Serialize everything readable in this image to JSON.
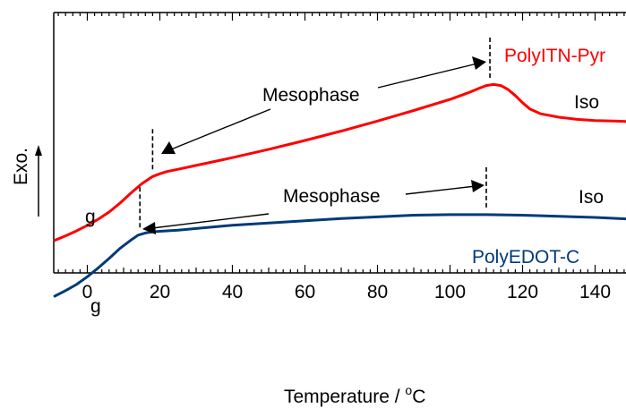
{
  "chart_data": {
    "type": "line",
    "title": "",
    "xlabel": "Temperature / ",
    "xlabel_superscript": "o",
    "xlabel_unit": "C",
    "ylabel": "Exo.",
    "xlim": [
      -9,
      150
    ],
    "x_ticks": [
      0,
      20,
      40,
      60,
      80,
      100,
      120,
      140
    ],
    "y_ticks": [],
    "grid": false,
    "series": [
      {
        "name": "PolyITN-Pyr",
        "color": "#ff0000",
        "x": [
          -9,
          -6,
          -3,
          0,
          3,
          6,
          9,
          12,
          15,
          18,
          20,
          22,
          25,
          30,
          40,
          50,
          60,
          70,
          80,
          90,
          100,
          105,
          108,
          110,
          112,
          114,
          116,
          118,
          120,
          122,
          125,
          130,
          135,
          140,
          145,
          150
        ],
        "y": [
          -0.3,
          -0.22,
          -0.13,
          -0.03,
          0.08,
          0.21,
          0.37,
          0.55,
          0.72,
          0.85,
          0.9,
          0.94,
          0.98,
          1.05,
          1.19,
          1.34,
          1.5,
          1.67,
          1.85,
          2.04,
          2.24,
          2.36,
          2.44,
          2.49,
          2.51,
          2.49,
          2.42,
          2.31,
          2.18,
          2.07,
          1.98,
          1.92,
          1.88,
          1.86,
          1.85,
          1.84
        ]
      },
      {
        "name": "PolyEDOT-C",
        "color": "#003a7a",
        "x": [
          -9,
          -6,
          -3,
          0,
          3,
          6,
          9,
          12,
          14,
          16,
          18,
          20,
          25,
          30,
          40,
          50,
          60,
          70,
          80,
          90,
          100,
          105,
          110,
          120,
          130,
          140,
          150
        ],
        "y": [
          -1.42,
          -1.32,
          -1.21,
          -1.07,
          -0.91,
          -0.74,
          -0.56,
          -0.41,
          -0.32,
          -0.28,
          -0.26,
          -0.25,
          -0.23,
          -0.2,
          -0.14,
          -0.1,
          -0.06,
          -0.02,
          0.01,
          0.04,
          0.05,
          0.05,
          0.05,
          0.04,
          0.02,
          0.0,
          -0.03
        ]
      }
    ],
    "annotations": [
      {
        "text": "PolyITN-Pyr",
        "series": 0
      },
      {
        "text": "PolyEDOT-C",
        "series": 1
      },
      {
        "text": "Mesophase",
        "series": 0
      },
      {
        "text": "Mesophase",
        "series": 1
      },
      {
        "text": "Iso",
        "series": 0
      },
      {
        "text": "Iso",
        "series": 1
      },
      {
        "text": "g",
        "series": 0
      },
      {
        "text": "g",
        "series": 1
      }
    ],
    "transition_markers": [
      {
        "series": 0,
        "x": 18
      },
      {
        "series": 0,
        "x": 111
      },
      {
        "series": 1,
        "x": 14.5
      },
      {
        "series": 1,
        "x": 110
      }
    ]
  }
}
